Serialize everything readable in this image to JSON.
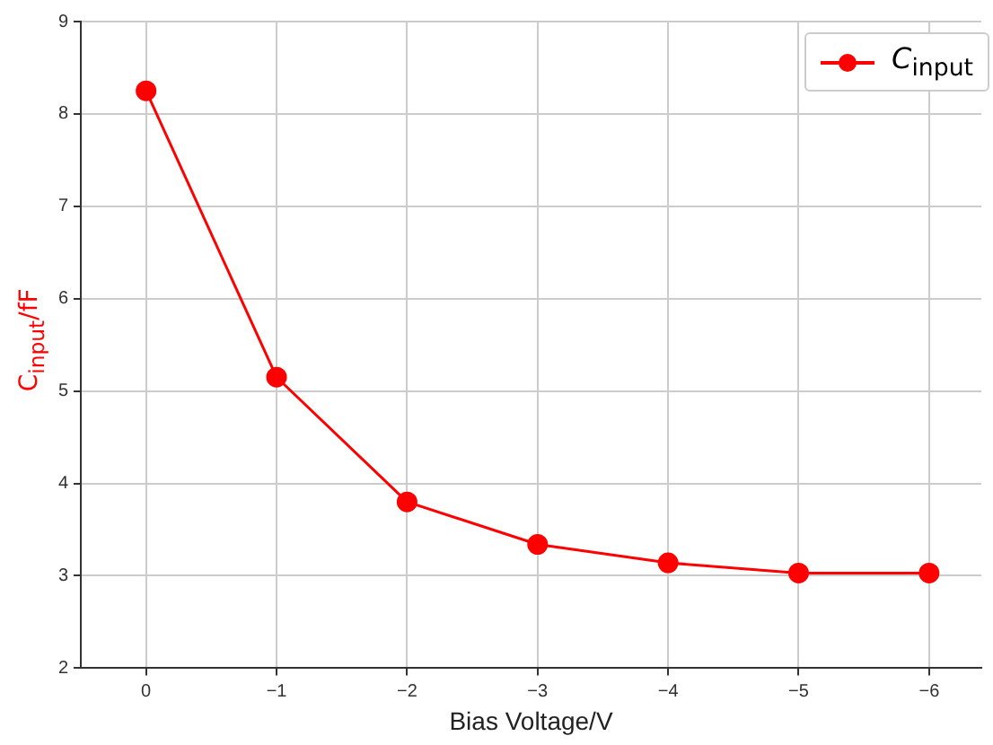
{
  "chart_data": {
    "type": "line",
    "xlabel": "Bias Voltage/V",
    "ylabel": "C$_{input}$/fF",
    "x": [
      0,
      -1,
      -2,
      -3,
      -4,
      -5,
      -6
    ],
    "series": [
      {
        "name": "C$_{input}$",
        "color": "#ff0000",
        "values": [
          8.25,
          5.15,
          3.8,
          3.34,
          3.14,
          3.03,
          3.03
        ]
      }
    ],
    "xlim": [
      0.5,
      -6.4
    ],
    "xticks": [
      0,
      {
        "value": -1,
        "label": "−1"
      },
      {
        "value": -2,
        "label": "−2"
      },
      {
        "value": -3,
        "label": "−3"
      },
      {
        "value": -4,
        "label": "−4"
      },
      {
        "value": -5,
        "label": "−5"
      },
      {
        "value": -6,
        "label": "−6"
      }
    ],
    "ylim": [
      2,
      9
    ],
    "yticks": [
      2,
      3,
      4,
      5,
      6,
      7,
      8,
      9
    ],
    "grid": true,
    "legend": "top right",
    "marker": "circle",
    "line_style": "solid"
  }
}
